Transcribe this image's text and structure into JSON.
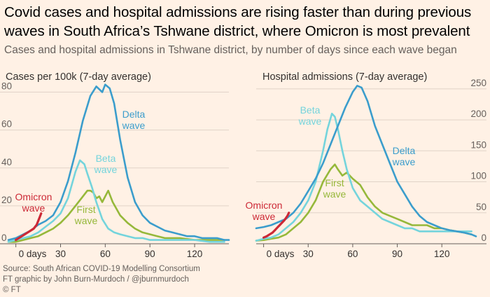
{
  "title": "Covid cases and hospital admissions are rising faster than during previous waves in South Africa’s Tshwane district, where Omicron is most prevalent",
  "subtitle": "Cases and hospital admissions in Tshwane district, by number of days since each wave began",
  "footer": {
    "source": "Source: South African COVID-19 Modelling Consortium",
    "credit": "FT graphic by John Burn-Murdoch / @jburnmurdoch",
    "copyright": "© FT"
  },
  "colors": {
    "background": "#fff1e5",
    "omicron": "#cc2936",
    "delta": "#3b9dcc",
    "beta": "#74d4dc",
    "first": "#96b83a",
    "grid": "#e0d3c8"
  },
  "chart_data": [
    {
      "type": "line",
      "title": "Cases per 100k (7-day average)",
      "x_tick_labels": [
        "0 days",
        "30",
        "60",
        "90",
        "120"
      ],
      "x_ticks": [
        0,
        30,
        60,
        90,
        120
      ],
      "xlim": [
        -5,
        143
      ],
      "ylim": [
        0,
        85
      ],
      "y_ticks": [
        0,
        20,
        40,
        60,
        80
      ],
      "y_axis_side": "left",
      "grid": true,
      "series": [
        {
          "name": "Delta wave",
          "key": "delta",
          "label_lines": [
            "Delta",
            "wave"
          ],
          "x": [
            -5,
            0,
            5,
            10,
            15,
            20,
            25,
            30,
            35,
            40,
            45,
            50,
            54,
            58,
            60,
            63,
            66,
            70,
            75,
            80,
            85,
            90,
            95,
            100,
            105,
            110,
            115,
            120,
            125,
            130,
            135,
            140,
            143
          ],
          "y": [
            2,
            3,
            5,
            7,
            10,
            12,
            15,
            22,
            33,
            48,
            65,
            78,
            83,
            80,
            84,
            82,
            74,
            55,
            35,
            22,
            15,
            11,
            9,
            7,
            6,
            5,
            4,
            4,
            3,
            3,
            3,
            2,
            2
          ]
        },
        {
          "name": "Beta wave",
          "key": "beta",
          "label_lines": [
            "Beta",
            "wave"
          ],
          "x": [
            -5,
            0,
            5,
            10,
            15,
            20,
            25,
            30,
            35,
            40,
            43,
            46,
            48,
            51,
            54,
            58,
            62,
            66,
            70,
            75,
            80,
            85,
            90,
            95,
            100,
            110,
            120,
            130,
            140
          ],
          "y": [
            1,
            2,
            3,
            4,
            6,
            9,
            12,
            16,
            24,
            38,
            44,
            42,
            37,
            30,
            22,
            13,
            8,
            6,
            5,
            4,
            3,
            3,
            2,
            2,
            2,
            2,
            2,
            1,
            1
          ]
        },
        {
          "name": "First wave",
          "key": "first",
          "label_lines": [
            "First",
            "wave"
          ],
          "x": [
            -5,
            0,
            5,
            10,
            15,
            20,
            25,
            30,
            35,
            40,
            45,
            48,
            50,
            52,
            54,
            56,
            58,
            60,
            62,
            65,
            70,
            75,
            80,
            85,
            90,
            95,
            100,
            110,
            120,
            130,
            140
          ],
          "y": [
            1,
            1,
            2,
            3,
            4,
            6,
            8,
            11,
            15,
            20,
            25,
            28,
            28,
            27,
            24,
            25,
            22,
            25,
            28,
            22,
            15,
            11,
            8,
            6,
            5,
            4,
            3,
            3,
            2,
            2,
            2
          ]
        },
        {
          "name": "Omicron wave",
          "key": "omicron",
          "label_lines": [
            "Omicron",
            "wave"
          ],
          "x": [
            0,
            2,
            4,
            6,
            8,
            10,
            12,
            14,
            16,
            17
          ],
          "y": [
            2,
            3,
            4,
            5,
            6,
            7,
            8,
            10,
            14,
            16
          ]
        }
      ]
    },
    {
      "type": "line",
      "title": "Hospital admissions (7-day average)",
      "x_tick_labels": [
        "0 days",
        "30",
        "60",
        "90",
        "120"
      ],
      "x_ticks": [
        0,
        30,
        60,
        90,
        120
      ],
      "xlim": [
        -5,
        143
      ],
      "ylim": [
        0,
        260
      ],
      "y_ticks": [
        0,
        50,
        100,
        150,
        200,
        250
      ],
      "y_axis_side": "right",
      "grid": true,
      "series": [
        {
          "name": "Delta wave",
          "key": "delta",
          "label_lines": [
            "Delta",
            "wave"
          ],
          "x": [
            -5,
            0,
            5,
            10,
            15,
            20,
            25,
            30,
            35,
            40,
            45,
            50,
            55,
            60,
            63,
            66,
            70,
            75,
            80,
            85,
            90,
            95,
            100,
            105,
            110,
            115,
            120,
            125,
            130,
            135,
            140,
            143
          ],
          "y": [
            25,
            27,
            30,
            35,
            40,
            50,
            65,
            85,
            105,
            130,
            160,
            190,
            220,
            245,
            255,
            252,
            230,
            190,
            160,
            130,
            100,
            80,
            60,
            45,
            35,
            30,
            25,
            22,
            20,
            18,
            15,
            12
          ]
        },
        {
          "name": "Beta wave",
          "key": "beta",
          "label_lines": [
            "Beta",
            "wave"
          ],
          "x": [
            -5,
            0,
            5,
            10,
            15,
            20,
            25,
            30,
            35,
            40,
            43,
            46,
            48,
            50,
            53,
            56,
            60,
            65,
            70,
            75,
            80,
            85,
            90,
            95,
            100,
            105,
            110,
            115,
            120,
            125,
            130,
            140
          ],
          "y": [
            5,
            8,
            10,
            15,
            25,
            35,
            50,
            70,
            100,
            150,
            185,
            210,
            205,
            185,
            150,
            120,
            90,
            70,
            60,
            50,
            40,
            35,
            30,
            25,
            25,
            20,
            20,
            20,
            20,
            20,
            20,
            20
          ]
        },
        {
          "name": "First wave",
          "key": "first",
          "label_lines": [
            "First",
            "wave"
          ],
          "x": [
            -5,
            0,
            5,
            10,
            15,
            20,
            25,
            30,
            35,
            40,
            45,
            48,
            50,
            53,
            56,
            60,
            65,
            70,
            75,
            80,
            85,
            90,
            95,
            100,
            105,
            110,
            115,
            120,
            125,
            130,
            135,
            140
          ],
          "y": [
            5,
            6,
            8,
            10,
            15,
            25,
            35,
            50,
            70,
            100,
            120,
            128,
            120,
            110,
            115,
            105,
            95,
            75,
            60,
            50,
            45,
            40,
            35,
            30,
            30,
            30,
            25,
            25,
            22,
            20,
            18,
            15
          ]
        },
        {
          "name": "Omicron wave",
          "key": "omicron",
          "label_lines": [
            "Omicron",
            "wave"
          ],
          "x": [
            0,
            2,
            4,
            6,
            8,
            10,
            12,
            14,
            16,
            17
          ],
          "y": [
            10,
            12,
            15,
            18,
            23,
            28,
            33,
            38,
            45,
            50
          ]
        }
      ]
    }
  ]
}
